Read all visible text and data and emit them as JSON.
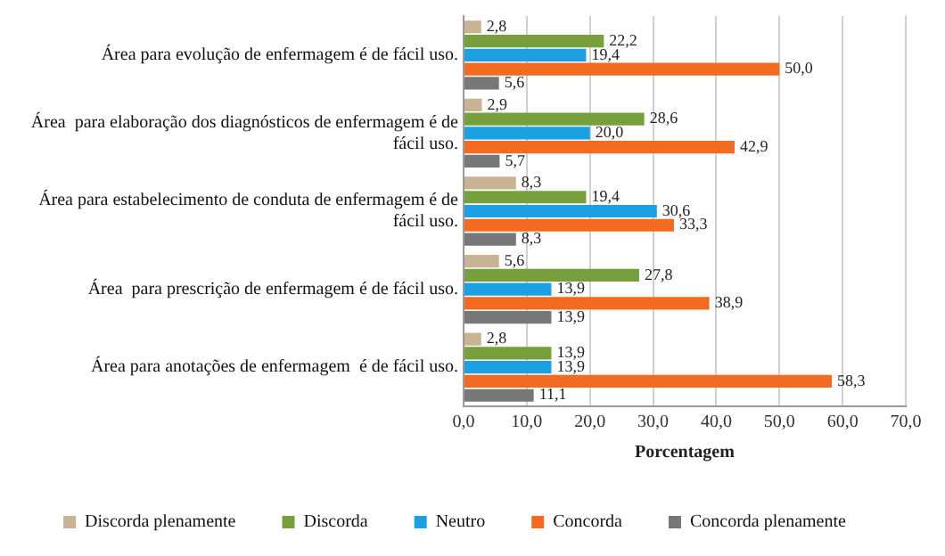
{
  "chart_data": {
    "type": "bar",
    "orientation": "horizontal",
    "xlabel": "Porcentagem",
    "categories": [
      "Área para evolução de enfermagem é de fácil uso.",
      "Área  para elaboração dos diagnósticos de enfermagem é de fácil uso.",
      "Área para estabelecimento de conduta de enfermagem é de fácil uso.",
      "Área  para prescrição de enfermagem é de fácil uso.",
      "Área para anotações de enfermagem  é de fácil uso."
    ],
    "series": [
      {
        "name": "Discorda plenamente",
        "color": "#c8b495",
        "values": [
          2.8,
          2.9,
          8.3,
          5.6,
          2.8
        ],
        "value_labels": [
          "2,8",
          "2,9",
          "8,3",
          "5,6",
          "2,8"
        ]
      },
      {
        "name": "Discorda",
        "color": "#77a03c",
        "values": [
          22.2,
          28.6,
          19.4,
          27.8,
          13.9
        ],
        "value_labels": [
          "22,2",
          "28,6",
          "19,4",
          "27,8",
          "13,9"
        ]
      },
      {
        "name": "Neutro",
        "color": "#1ba1e2",
        "values": [
          19.4,
          20.0,
          30.6,
          13.9,
          13.9
        ],
        "value_labels": [
          "19,4",
          "20,0",
          "30,6",
          "13,9",
          "13,9"
        ]
      },
      {
        "name": "Concorda",
        "color": "#f26b21",
        "values": [
          50.0,
          42.9,
          33.3,
          38.9,
          58.3
        ],
        "value_labels": [
          "50,0",
          "42,9",
          "33,3",
          "38,9",
          "58,3"
        ]
      },
      {
        "name": "Concorda plenamente",
        "color": "#777777",
        "values": [
          5.6,
          5.7,
          8.3,
          13.9,
          11.1
        ],
        "value_labels": [
          "5,6",
          "5,7",
          "8,3",
          "13,9",
          "11,1"
        ]
      }
    ],
    "xlim": [
      0,
      70
    ],
    "xticks": [
      {
        "value": 0,
        "label": "0,0"
      },
      {
        "value": 10,
        "label": "10,0"
      },
      {
        "value": 20,
        "label": "20,0"
      },
      {
        "value": 30,
        "label": "30,0"
      },
      {
        "value": 40,
        "label": "40,0"
      },
      {
        "value": 50,
        "label": "50,0"
      },
      {
        "value": 60,
        "label": "60,0"
      },
      {
        "value": 70,
        "label": "70,0"
      }
    ],
    "grid": "x",
    "legend": "bottom"
  }
}
